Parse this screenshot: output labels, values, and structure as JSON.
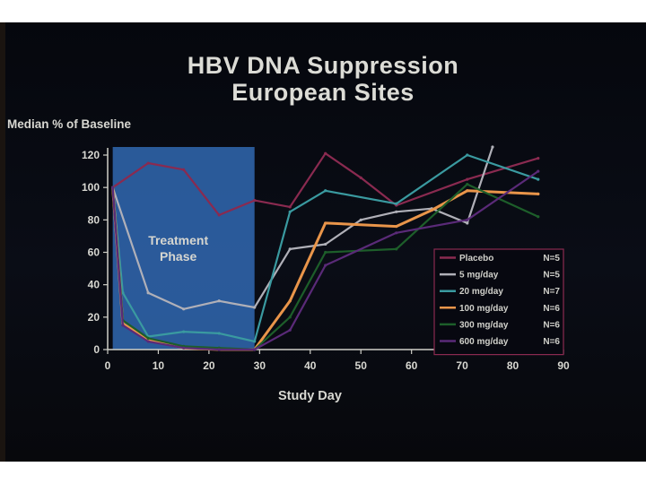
{
  "chart_data": {
    "type": "line",
    "title": "HBV DNA Suppression",
    "subtitle": "European Sites",
    "ylabel": "Median % of  Baseline",
    "xlabel": "Study Day",
    "xlim": [
      0,
      90
    ],
    "ylim": [
      0,
      120
    ],
    "xticks": [
      "0",
      "10",
      "20",
      "30",
      "40",
      "50",
      "60",
      "70",
      "80",
      "90"
    ],
    "yticks": [
      "0",
      "20",
      "40",
      "60",
      "80",
      "100",
      "120"
    ],
    "shaded_region": {
      "x0": 1,
      "x1": 29,
      "label_line1": "Treatment",
      "label_line2": "Phase",
      "color": "#2f63a8"
    },
    "legend_position": "lower-right",
    "series": [
      {
        "name": "Placebo",
        "n": "N=5",
        "color": "#8a2a50",
        "x": [
          1,
          8,
          15,
          22,
          29,
          36,
          43,
          50,
          57,
          71,
          85
        ],
        "y": [
          100,
          115,
          111,
          83,
          92,
          88,
          121,
          106,
          89,
          105,
          118
        ]
      },
      {
        "name": "5 mg/day",
        "n": "N=5",
        "color": "#b0b0b8",
        "x": [
          1,
          8,
          15,
          22,
          29,
          36,
          43,
          50,
          57,
          64,
          71,
          76
        ],
        "y": [
          100,
          35,
          25,
          30,
          26,
          62,
          65,
          80,
          85,
          87,
          78,
          125
        ]
      },
      {
        "name": "20 mg/day",
        "n": "N=7",
        "color": "#3a9aa0",
        "x": [
          1,
          3,
          8,
          15,
          22,
          29,
          36,
          43,
          57,
          71,
          85
        ],
        "y": [
          100,
          35,
          8,
          11,
          10,
          5,
          85,
          98,
          90,
          120,
          105
        ]
      },
      {
        "name": "100 mg/day",
        "n": "N=6",
        "color": "#e9954a",
        "x": [
          1,
          3,
          8,
          15,
          22,
          29,
          36,
          43,
          57,
          64,
          71,
          85
        ],
        "y": [
          100,
          16,
          6,
          1,
          0,
          0,
          30,
          78,
          76,
          86,
          98,
          96
        ]
      },
      {
        "name": "300 mg/day",
        "n": "N=6",
        "color": "#1d5e2a",
        "x": [
          1,
          3,
          8,
          15,
          22,
          29,
          36,
          43,
          57,
          71,
          85
        ],
        "y": [
          100,
          18,
          7,
          2,
          1,
          0,
          20,
          60,
          62,
          102,
          82
        ]
      },
      {
        "name": "600 mg/day",
        "n": "N=6",
        "color": "#5a2a78",
        "x": [
          1,
          3,
          8,
          15,
          22,
          29,
          36,
          43,
          57,
          71,
          85
        ],
        "y": [
          100,
          15,
          5,
          1,
          0,
          0,
          12,
          52,
          72,
          80,
          110
        ]
      }
    ]
  }
}
